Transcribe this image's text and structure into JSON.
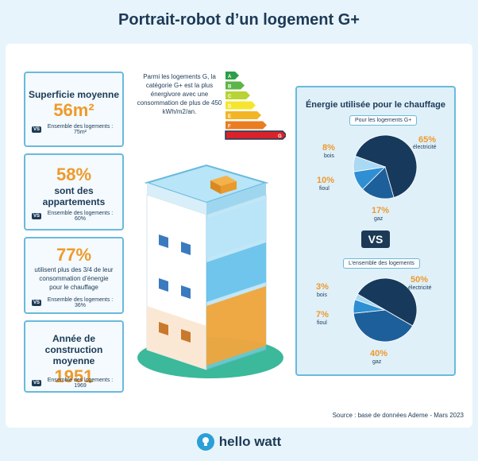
{
  "title": "Portrait-robot d’un logement G+",
  "stats": [
    {
      "label": "Superficie moyenne",
      "value": "56m²",
      "compare": "Ensemble des logements : 75m²"
    },
    {
      "value": "58%",
      "label": "sont des appartements",
      "compare": "Ensemble des logements : 60%"
    },
    {
      "value": "77%",
      "label": "utilisent plus des 3/4 de leur consommation d’énergie pour le chauffage",
      "compare": "Ensemble des logements : 36%"
    },
    {
      "label": "Année de construction moyenne",
      "value": "1951",
      "compare": "Ensemble des logements : 1969"
    }
  ],
  "vs_badge": "VS",
  "energy_label": {
    "text": "Parmi les logements G, la catégorie G+ est la plus énergivore avec une consommation de plus de 450 kWh/m2/an.",
    "grades": [
      "A",
      "B",
      "C",
      "D",
      "E",
      "F",
      "G"
    ],
    "highlight": "G",
    "colors": [
      "#2e9e48",
      "#5cb547",
      "#b7d334",
      "#f6e52e",
      "#f2b526",
      "#ea7c22",
      "#d9232a"
    ]
  },
  "heating": {
    "title": "Énergie utilisée pour le chauffage",
    "gplus_label": "Pour les logements G+",
    "all_label": "L’ensemble des logements",
    "vs": "VS",
    "gplus": [
      {
        "pct": "65%",
        "name": "électricité",
        "value": 65,
        "color": "#173a5c"
      },
      {
        "pct": "17%",
        "name": "gaz",
        "value": 17,
        "color": "#1d5f9a"
      },
      {
        "pct": "10%",
        "name": "fioul",
        "value": 10,
        "color": "#2f8fd3"
      },
      {
        "pct": "8%",
        "name": "bois",
        "value": 8,
        "color": "#a9d9f3"
      }
    ],
    "all": [
      {
        "pct": "50%",
        "name": "électricité",
        "value": 50,
        "color": "#173a5c"
      },
      {
        "pct": "40%",
        "name": "gaz",
        "value": 40,
        "color": "#1d5f9a"
      },
      {
        "pct": "7%",
        "name": "fioul",
        "value": 7,
        "color": "#2f8fd3"
      },
      {
        "pct": "3%",
        "name": "bois",
        "value": 3,
        "color": "#a9d9f3"
      }
    ]
  },
  "source": "Source : base de données Ademe - Mars 2023",
  "brand": "hello watt"
}
